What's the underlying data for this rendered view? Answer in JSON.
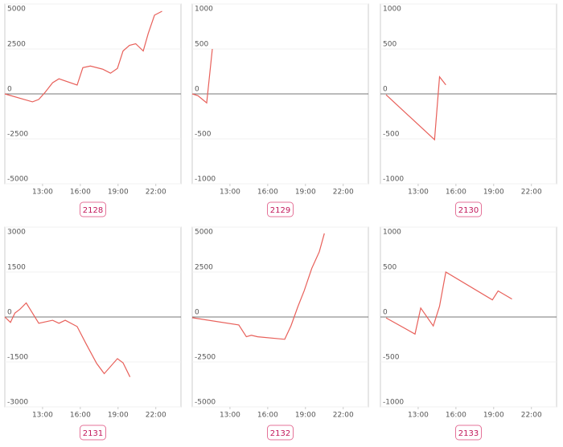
{
  "chart_data": [
    {
      "type": "line",
      "title": "2128",
      "color": "#e8605a",
      "grid": true,
      "x": [
        10,
        12.2,
        12.7,
        13.2,
        13.8,
        14.3,
        15.75,
        16.2,
        16.8,
        17.8,
        18.4,
        18.95,
        19.4,
        19.9,
        20.4,
        21,
        21.4,
        21.9,
        22.5
      ],
      "values": [
        0,
        -440,
        -310,
        90,
        620,
        840,
        490,
        1460,
        1550,
        1370,
        1150,
        1420,
        2390,
        2700,
        2790,
        2390,
        3360,
        4380,
        4600
      ],
      "xlim": [
        10,
        24
      ],
      "ylim": [
        -5000,
        5000
      ],
      "xticks": [
        {
          "value": 13,
          "label": "13:00"
        },
        {
          "value": 16,
          "label": "16:00"
        },
        {
          "value": 19,
          "label": "19:00"
        },
        {
          "value": 22,
          "label": "22:00"
        }
      ],
      "yticks": [
        -5000,
        -2500,
        0,
        2500,
        5000
      ]
    },
    {
      "type": "line",
      "title": "2129",
      "color": "#e8605a",
      "grid": true,
      "x": [
        10,
        10.45,
        11.15,
        11.6
      ],
      "values": [
        0,
        -20,
        -100,
        500
      ],
      "xlim": [
        10,
        24
      ],
      "ylim": [
        -1000,
        1000
      ],
      "xticks": [
        {
          "value": 13,
          "label": "13:00"
        },
        {
          "value": 16,
          "label": "16:00"
        },
        {
          "value": 19,
          "label": "19:00"
        },
        {
          "value": 22,
          "label": "22:00"
        }
      ],
      "yticks": [
        -1000,
        -500,
        0,
        500,
        1000
      ]
    },
    {
      "type": "line",
      "title": "2130",
      "color": "#e8605a",
      "grid": true,
      "x": [
        10.45,
        14.3,
        14.7,
        15.2
      ],
      "values": [
        -10,
        -510,
        190,
        100
      ],
      "xlim": [
        10,
        24
      ],
      "ylim": [
        -1000,
        1000
      ],
      "xticks": [
        {
          "value": 13,
          "label": "13:00"
        },
        {
          "value": 16,
          "label": "16:00"
        },
        {
          "value": 19,
          "label": "19:00"
        },
        {
          "value": 22,
          "label": "22:00"
        }
      ],
      "yticks": [
        -1000,
        -500,
        0,
        500,
        1000
      ]
    },
    {
      "type": "line",
      "title": "2131",
      "color": "#e8605a",
      "grid": true,
      "x": [
        10,
        10.45,
        10.8,
        11.2,
        11.7,
        12.7,
        13.8,
        14.3,
        14.8,
        15.75,
        16.45,
        17.3,
        17.9,
        18.95,
        19.4,
        19.95
      ],
      "values": [
        0,
        -180,
        130,
        260,
        470,
        -210,
        -110,
        -210,
        -110,
        -320,
        -890,
        -1550,
        -1890,
        -1390,
        -1530,
        -2000
      ],
      "xlim": [
        10,
        24
      ],
      "ylim": [
        -3000,
        3000
      ],
      "xticks": [
        {
          "value": 13,
          "label": "13:00"
        },
        {
          "value": 16,
          "label": "16:00"
        },
        {
          "value": 19,
          "label": "19:00"
        },
        {
          "value": 22,
          "label": "22:00"
        }
      ],
      "yticks": [
        -3000,
        -1500,
        0,
        1500,
        3000
      ]
    },
    {
      "type": "line",
      "title": "2132",
      "color": "#e8605a",
      "grid": true,
      "x": [
        10,
        13.7,
        14.3,
        14.7,
        15.2,
        17.35,
        17.85,
        18.4,
        18.9,
        19.5,
        20.1,
        20.5
      ],
      "values": [
        -40,
        -440,
        -1100,
        -1020,
        -1100,
        -1240,
        -490,
        580,
        1460,
        2700,
        3630,
        4650
      ],
      "xlim": [
        10,
        24
      ],
      "ylim": [
        -5000,
        5000
      ],
      "xticks": [
        {
          "value": 13,
          "label": "13:00"
        },
        {
          "value": 16,
          "label": "16:00"
        },
        {
          "value": 19,
          "label": "19:00"
        },
        {
          "value": 22,
          "label": "22:00"
        }
      ],
      "yticks": [
        -5000,
        -2500,
        0,
        2500,
        5000
      ]
    },
    {
      "type": "line",
      "title": "2133",
      "color": "#e8605a",
      "grid": true,
      "x": [
        10.45,
        12.75,
        13.2,
        14.2,
        14.7,
        15.2,
        18.9,
        19.35,
        20.45
      ],
      "values": [
        -10,
        -190,
        100,
        -100,
        120,
        500,
        190,
        290,
        200
      ],
      "xlim": [
        10,
        24
      ],
      "ylim": [
        -1000,
        1000
      ],
      "xticks": [
        {
          "value": 13,
          "label": "13:00"
        },
        {
          "value": 16,
          "label": "16:00"
        },
        {
          "value": 19,
          "label": "19:00"
        },
        {
          "value": 22,
          "label": "22:00"
        }
      ],
      "yticks": [
        -1000,
        -500,
        0,
        500,
        1000
      ]
    }
  ]
}
